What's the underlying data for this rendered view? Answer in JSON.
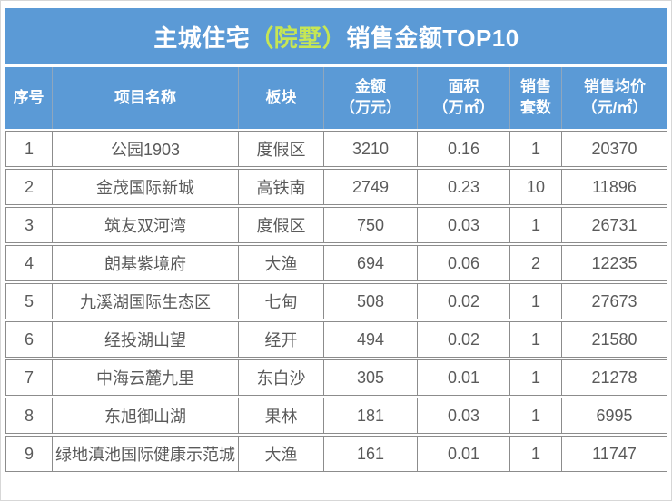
{
  "title": {
    "prefix": "主城住宅",
    "highlight": "（院墅）",
    "suffix": "销售金额TOP10"
  },
  "colors": {
    "header_blue": "#5b9ad6",
    "title_highlight": "#c6e654",
    "data_text": "#5a5a5a",
    "grid_border": "#8c8c8c"
  },
  "table": {
    "columns": [
      {
        "line1": "序号",
        "line2": ""
      },
      {
        "line1": "项目名称",
        "line2": ""
      },
      {
        "line1": "板块",
        "line2": ""
      },
      {
        "line1": "金额",
        "line2": "（万元）"
      },
      {
        "line1": "面积",
        "line2": "（万㎡）"
      },
      {
        "line1": "销售",
        "line2": "套数"
      },
      {
        "line1": "销售均价",
        "line2": "（元/㎡）"
      }
    ],
    "rows": [
      [
        "1",
        "公园1903",
        "度假区",
        "3210",
        "0.16",
        "1",
        "20370"
      ],
      [
        "2",
        "金茂国际新城",
        "高铁南",
        "2749",
        "0.23",
        "10",
        "11896"
      ],
      [
        "3",
        "筑友双河湾",
        "度假区",
        "750",
        "0.03",
        "1",
        "26731"
      ],
      [
        "4",
        "朗基紫境府",
        "大渔",
        "694",
        "0.06",
        "2",
        "12235"
      ],
      [
        "5",
        "九溪湖国际生态区",
        "七甸",
        "508",
        "0.02",
        "1",
        "27673"
      ],
      [
        "6",
        "经投湖山望",
        "经开",
        "494",
        "0.02",
        "1",
        "21580"
      ],
      [
        "7",
        "中海云麓九里",
        "东白沙",
        "305",
        "0.01",
        "1",
        "21278"
      ],
      [
        "8",
        "东旭御山湖",
        "果林",
        "181",
        "0.03",
        "1",
        "6995"
      ],
      [
        "9",
        "绿地滇池国际健康示范城",
        "大渔",
        "161",
        "0.01",
        "1",
        "11747"
      ]
    ]
  },
  "chart_data": {
    "type": "table",
    "title": "主城住宅（院墅）销售金额TOP10",
    "columns": [
      "序号",
      "项目名称",
      "板块",
      "金额（万元）",
      "面积（万㎡）",
      "销售套数",
      "销售均价（元/㎡）"
    ],
    "rows": [
      [
        1,
        "公园1903",
        "度假区",
        3210,
        0.16,
        1,
        20370
      ],
      [
        2,
        "金茂国际新城",
        "高铁南",
        2749,
        0.23,
        10,
        11896
      ],
      [
        3,
        "筑友双河湾",
        "度假区",
        750,
        0.03,
        1,
        26731
      ],
      [
        4,
        "朗基紫境府",
        "大渔",
        694,
        0.06,
        2,
        12235
      ],
      [
        5,
        "九溪湖国际生态区",
        "七甸",
        508,
        0.02,
        1,
        27673
      ],
      [
        6,
        "经投湖山望",
        "经开",
        494,
        0.02,
        1,
        21580
      ],
      [
        7,
        "中海云麓九里",
        "东白沙",
        305,
        0.01,
        1,
        21278
      ],
      [
        8,
        "东旭御山湖",
        "果林",
        181,
        0.03,
        1,
        6995
      ],
      [
        9,
        "绿地滇池国际健康示范城",
        "大渔",
        161,
        0.01,
        1,
        11747
      ]
    ]
  }
}
